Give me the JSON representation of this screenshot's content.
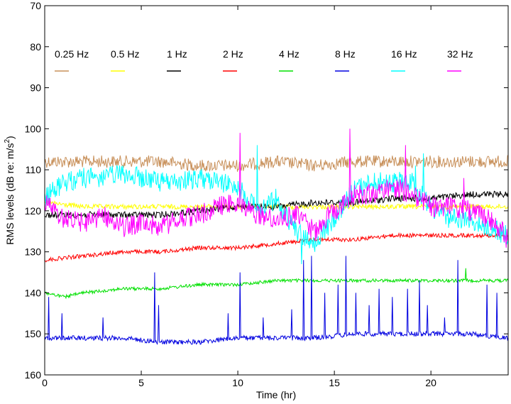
{
  "chart_data": {
    "type": "line",
    "xlabel": "Time (hr)",
    "ylabel": "RMS levels (dB re: m/s",
    "ylabel_sup": "2",
    "ylabel_tail": ")",
    "xlim": [
      0,
      24
    ],
    "ylim": [
      70,
      160
    ],
    "y_reversed": true,
    "xticks": [
      0,
      5,
      10,
      15,
      20
    ],
    "yticks": [
      70,
      80,
      90,
      100,
      110,
      120,
      130,
      140,
      150,
      160
    ],
    "grid": false,
    "legend_position": "top, single row inside plot",
    "series": [
      {
        "name": "0.25 Hz",
        "color": "#c8905a",
        "x": [
          0,
          2,
          4,
          6,
          8,
          10,
          12,
          14,
          16,
          18,
          20,
          22,
          24
        ],
        "y": [
          108,
          108,
          108,
          108,
          109,
          109,
          108,
          109,
          108,
          108,
          108,
          108,
          108
        ],
        "noise": 1.5,
        "spikes": []
      },
      {
        "name": "0.5 Hz",
        "color": "#ffff00",
        "x": [
          0,
          2,
          4,
          6,
          8,
          10,
          12,
          14,
          16,
          18,
          20,
          22,
          24
        ],
        "y": [
          118,
          119,
          119,
          119,
          119,
          119,
          119,
          119,
          119,
          119,
          119,
          119,
          119
        ],
        "noise": 0.6,
        "spikes": []
      },
      {
        "name": "1 Hz",
        "color": "#000000",
        "x": [
          0,
          2,
          4,
          6,
          8,
          10,
          12,
          14,
          16,
          18,
          20,
          22,
          24
        ],
        "y": [
          121,
          121,
          121,
          121,
          120,
          119,
          119,
          118,
          118,
          117,
          117,
          116,
          116
        ],
        "noise": 0.8,
        "spikes": []
      },
      {
        "name": "2 Hz",
        "color": "#ff0000",
        "x": [
          0,
          2,
          4,
          6,
          8,
          10,
          12,
          14,
          16,
          18,
          20,
          22,
          24
        ],
        "y": [
          132,
          131,
          130,
          130,
          129,
          129,
          128,
          127,
          127,
          126,
          126,
          126,
          126
        ],
        "noise": 0.5,
        "spikes": []
      },
      {
        "name": "4 Hz",
        "color": "#00e000",
        "x": [
          0,
          1,
          2,
          4,
          6,
          8,
          10,
          12,
          14,
          16,
          18,
          20,
          22,
          24
        ],
        "y": [
          140,
          141,
          140,
          139,
          139,
          138,
          138,
          137,
          137,
          137,
          137,
          137,
          137,
          137
        ],
        "noise": 0.4,
        "spikes": [
          [
            21.8,
            134
          ]
        ]
      },
      {
        "name": "8 Hz",
        "color": "#0000e0",
        "x": [
          0,
          2,
          4,
          6,
          8,
          10,
          12,
          14,
          16,
          18,
          20,
          22,
          24
        ],
        "y": [
          151,
          151,
          151,
          152,
          152,
          151,
          151,
          151,
          150,
          150,
          150,
          150,
          151
        ],
        "noise": 0.6,
        "spikes": [
          [
            0.2,
            141
          ],
          [
            0.9,
            145
          ],
          [
            3.0,
            146
          ],
          [
            5.7,
            135
          ],
          [
            5.9,
            143
          ],
          [
            9.5,
            145
          ],
          [
            10.1,
            135
          ],
          [
            11.3,
            146
          ],
          [
            12.8,
            144
          ],
          [
            13.4,
            132
          ],
          [
            13.8,
            131
          ],
          [
            14.5,
            140
          ],
          [
            15.2,
            138
          ],
          [
            15.6,
            131
          ],
          [
            16.1,
            140
          ],
          [
            16.8,
            143
          ],
          [
            17.3,
            139
          ],
          [
            18.0,
            141
          ],
          [
            18.8,
            139
          ],
          [
            19.4,
            137
          ],
          [
            19.8,
            143
          ],
          [
            20.7,
            146
          ],
          [
            21.4,
            132
          ],
          [
            22.9,
            138
          ],
          [
            23.4,
            140
          ]
        ]
      },
      {
        "name": "16 Hz",
        "color": "#00ffff",
        "x": [
          0,
          1,
          2,
          3,
          4,
          5,
          6,
          7,
          8,
          9,
          10,
          11,
          12,
          13,
          14,
          15,
          16,
          17,
          18,
          19,
          20,
          21,
          22,
          23,
          24
        ],
        "y": [
          117,
          113,
          112,
          112,
          111,
          112,
          113,
          113,
          112,
          113,
          114,
          120,
          117,
          125,
          128,
          122,
          115,
          113,
          113,
          113,
          119,
          122,
          122,
          124,
          126
        ],
        "noise": 2.5,
        "spikes": [
          [
            19.6,
            106
          ],
          [
            19.2,
            109
          ],
          [
            13.3,
            133
          ],
          [
            14.0,
            130
          ],
          [
            11.0,
            104
          ]
        ]
      },
      {
        "name": "32 Hz",
        "color": "#ff00ff",
        "x": [
          0,
          1,
          2,
          3,
          4,
          5,
          6,
          7,
          8,
          9,
          10,
          11,
          12,
          13,
          14,
          15,
          16,
          17,
          18,
          19,
          20,
          21,
          22,
          23,
          24
        ],
        "y": [
          118,
          122,
          123,
          121,
          124,
          123,
          124,
          122,
          121,
          119,
          118,
          121,
          122,
          121,
          125,
          120,
          116,
          116,
          114,
          116,
          119,
          119,
          120,
          122,
          126
        ],
        "noise": 2.5,
        "spikes": [
          [
            10.1,
            101
          ],
          [
            15.8,
            100
          ],
          [
            18.7,
            104
          ],
          [
            21.7,
            112
          ],
          [
            23.9,
            129
          ]
        ]
      }
    ]
  }
}
